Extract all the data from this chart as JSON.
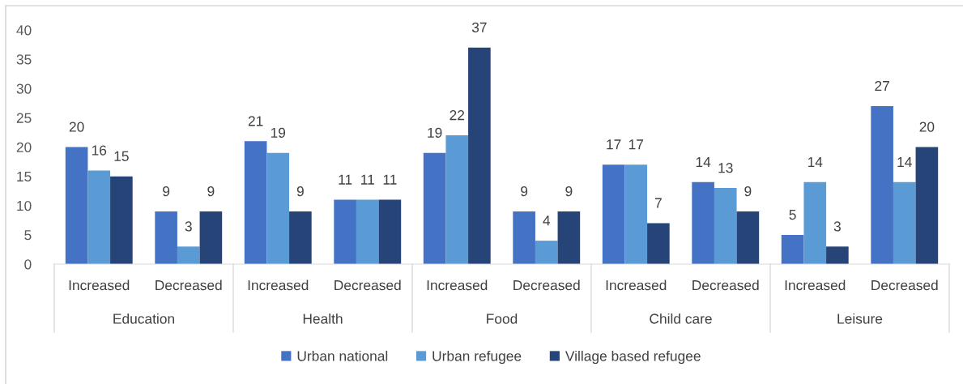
{
  "chart_data": {
    "type": "bar",
    "categories": [
      "Increased",
      "Decreased",
      "Increased",
      "Decreased",
      "Increased",
      "Decreased",
      "Increased",
      "Decreased",
      "Increased",
      "Decreased"
    ],
    "annotations": [
      "Education",
      "Health",
      "Food",
      "Child care",
      "Leisure"
    ],
    "series": [
      {
        "name": "Urban national",
        "color": "#4472c4",
        "values": [
          20,
          9,
          21,
          11,
          19,
          9,
          17,
          14,
          5,
          27
        ]
      },
      {
        "name": "Urban refugee",
        "color": "#5b9bd5",
        "values": [
          16,
          3,
          19,
          11,
          22,
          4,
          17,
          13,
          14,
          14
        ]
      },
      {
        "name": "Village based refugee",
        "color": "#264478",
        "values": [
          15,
          9,
          9,
          11,
          37,
          9,
          7,
          9,
          3,
          20
        ]
      }
    ],
    "ylim": [
      0,
      40
    ],
    "yticks": [
      0,
      5,
      10,
      15,
      20,
      25,
      30,
      35,
      40
    ],
    "legend": "bottom",
    "data_labels": true
  }
}
